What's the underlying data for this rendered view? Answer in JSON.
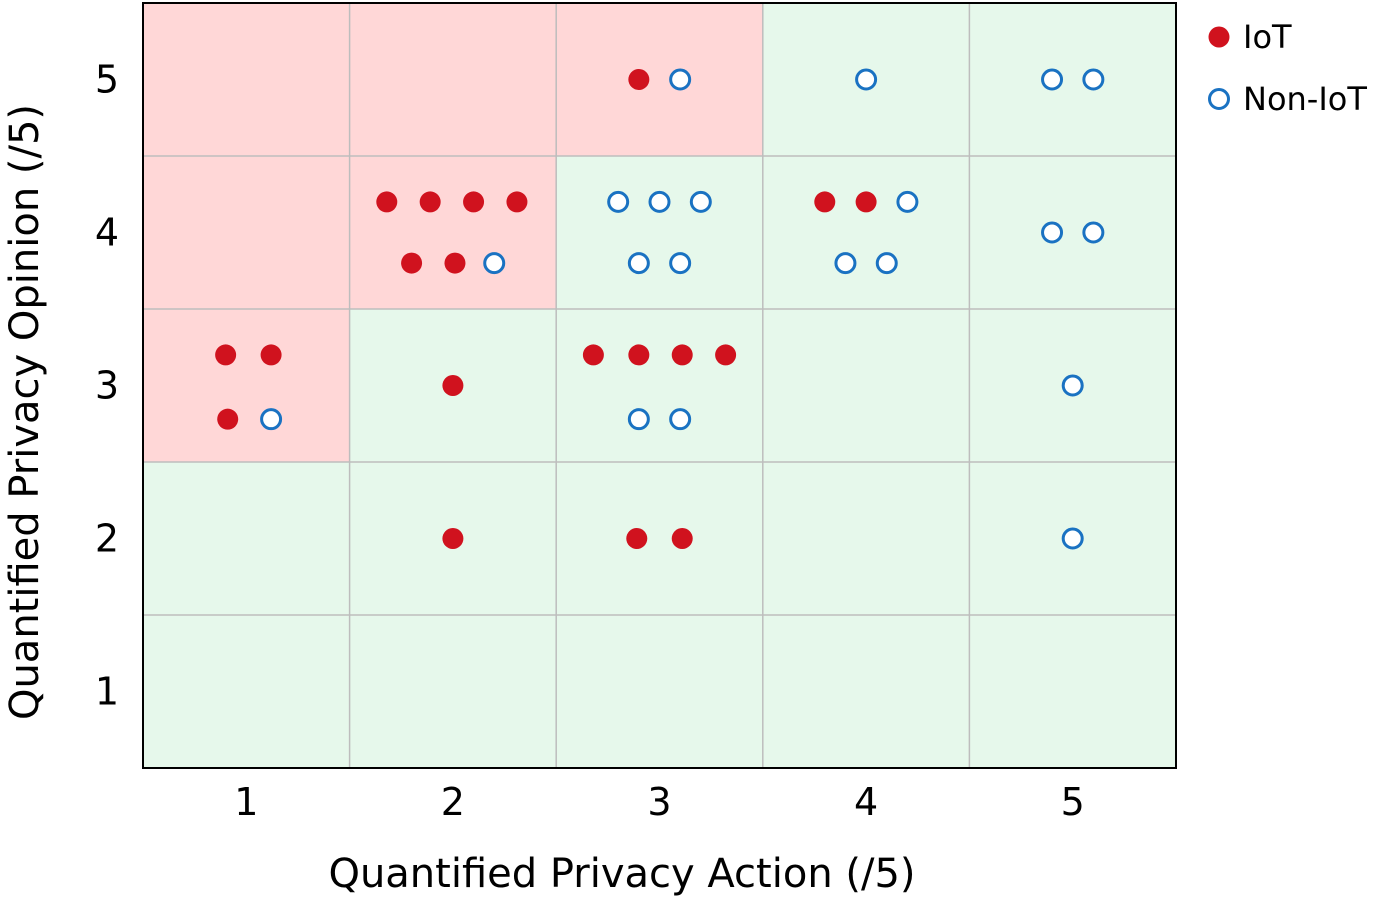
{
  "chart_data": {
    "type": "scatter",
    "title": "",
    "xlabel": "Quantified Privacy Action (/5)",
    "ylabel": "Quantified Privacy Opinion (/5)",
    "xlim": [
      0.5,
      5.5
    ],
    "ylim": [
      0.5,
      5.5
    ],
    "x_ticks": [
      "1",
      "2",
      "3",
      "4",
      "5"
    ],
    "y_ticks": [
      "1",
      "2",
      "3",
      "4",
      "5"
    ],
    "grid": true,
    "legend_position": "top-right",
    "region_colors": {
      "pink": "#ffd7d7",
      "green": "#e6f8eb"
    },
    "pink_cells": [
      [
        1,
        5
      ],
      [
        2,
        5
      ],
      [
        3,
        5
      ],
      [
        1,
        4
      ],
      [
        2,
        4
      ],
      [
        1,
        3
      ]
    ],
    "series": [
      {
        "name": "IoT",
        "marker": "filled-circle",
        "color": "#d0121e",
        "points": [
          [
            2.9,
            5.0
          ],
          [
            1.68,
            4.2
          ],
          [
            1.89,
            4.2
          ],
          [
            2.1,
            4.2
          ],
          [
            2.31,
            4.2
          ],
          [
            1.8,
            3.8
          ],
          [
            2.01,
            3.8
          ],
          [
            3.8,
            4.2
          ],
          [
            4.0,
            4.2
          ],
          [
            0.9,
            3.2
          ],
          [
            1.12,
            3.2
          ],
          [
            0.91,
            2.78
          ],
          [
            2.0,
            3.0
          ],
          [
            2.68,
            3.2
          ],
          [
            2.9,
            3.2
          ],
          [
            3.11,
            3.2
          ],
          [
            3.32,
            3.2
          ],
          [
            2.0,
            2.0
          ],
          [
            2.89,
            2.0
          ],
          [
            3.11,
            2.0
          ]
        ]
      },
      {
        "name": "Non-IoT",
        "marker": "open-circle",
        "color": "#1a72c2",
        "points": [
          [
            3.1,
            5.0
          ],
          [
            4.0,
            5.0
          ],
          [
            4.9,
            5.0
          ],
          [
            5.1,
            5.0
          ],
          [
            2.8,
            4.2
          ],
          [
            3.0,
            4.2
          ],
          [
            3.2,
            4.2
          ],
          [
            2.9,
            3.8
          ],
          [
            3.1,
            3.8
          ],
          [
            2.2,
            3.8
          ],
          [
            4.2,
            4.2
          ],
          [
            3.9,
            3.8
          ],
          [
            4.1,
            3.8
          ],
          [
            4.9,
            4.0
          ],
          [
            5.1,
            4.0
          ],
          [
            1.12,
            2.78
          ],
          [
            2.9,
            2.78
          ],
          [
            3.1,
            2.78
          ],
          [
            5.0,
            3.0
          ],
          [
            5.0,
            2.0
          ]
        ]
      }
    ]
  }
}
